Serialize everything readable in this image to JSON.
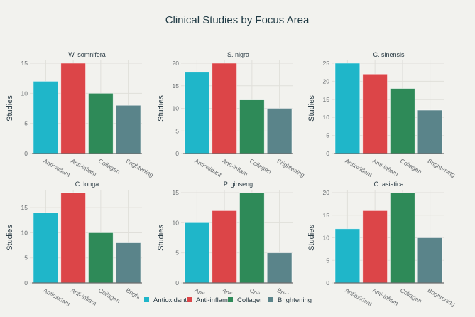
{
  "chart_data": {
    "type": "bar",
    "title": "Clinical Studies by Focus Area",
    "categories": [
      "Antioxidant",
      "Anti-inflam",
      "Collagen",
      "Brightening"
    ],
    "colors": {
      "Antioxidant": "#1fb6c9",
      "Anti-inflam": "#dc4548",
      "Collagen": "#2e8a58",
      "Brightening": "#5a848a"
    },
    "ylabel": "Studies",
    "legend": {
      "position": "bottom-center",
      "entries": [
        "Antioxidant",
        "Anti-inflam",
        "Collagen",
        "Brightening"
      ]
    },
    "grid": true,
    "subplots": [
      {
        "title": "W. somnifera",
        "values": [
          12,
          15,
          10,
          8
        ],
        "ylim": [
          0,
          15
        ],
        "yticks": [
          0,
          5,
          10,
          15
        ]
      },
      {
        "title": "S. nigra",
        "values": [
          18,
          20,
          12,
          10
        ],
        "ylim": [
          0,
          20
        ],
        "yticks": [
          0,
          5,
          10,
          15,
          20
        ]
      },
      {
        "title": "C. sinensis",
        "values": [
          25,
          22,
          18,
          12
        ],
        "ylim": [
          0,
          25
        ],
        "yticks": [
          0,
          5,
          10,
          15,
          20,
          25
        ]
      },
      {
        "title": "C. longa",
        "values": [
          14,
          18,
          10,
          8
        ],
        "ylim": [
          0,
          18
        ],
        "yticks": [
          0,
          5,
          10,
          15
        ]
      },
      {
        "title": "P. ginseng",
        "values": [
          10,
          12,
          15,
          5
        ],
        "ylim": [
          0,
          15
        ],
        "yticks": [
          0,
          5,
          10,
          15
        ]
      },
      {
        "title": "C. asiatica",
        "values": [
          12,
          16,
          20,
          10
        ],
        "ylim": [
          0,
          20
        ],
        "yticks": [
          0,
          5,
          10,
          15,
          20
        ]
      }
    ]
  }
}
